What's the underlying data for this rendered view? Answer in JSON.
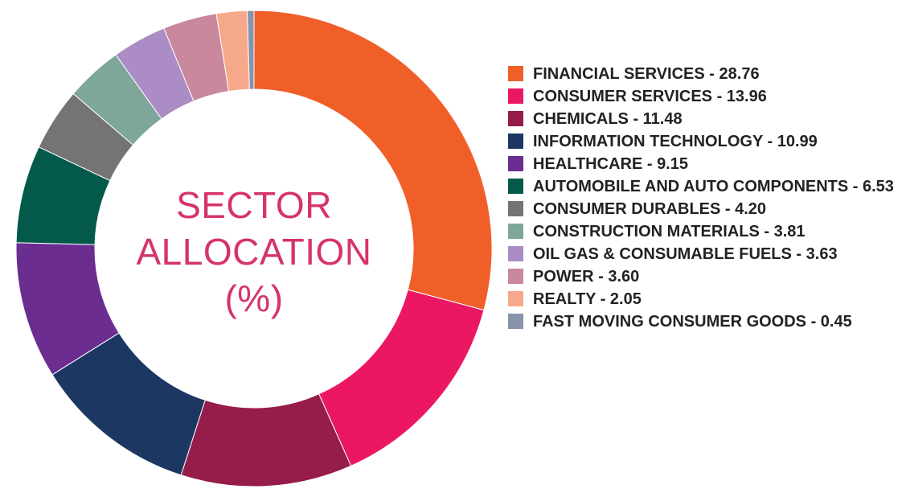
{
  "center_label": {
    "line1": "SECTOR",
    "line2": "ALLOCATION",
    "line3": "(%)"
  },
  "chart_data": {
    "type": "pie",
    "title": "SECTOR ALLOCATION (%)",
    "donut": true,
    "legend_position": "right",
    "slices": [
      {
        "label": "FINANCIAL SERVICES",
        "value": 28.76,
        "color": "#f15f29",
        "legend": "FINANCIAL SERVICES - 28.76"
      },
      {
        "label": "CONSUMER SERVICES",
        "value": 13.96,
        "color": "#ec1763",
        "legend": "CONSUMER SERVICES - 13.96"
      },
      {
        "label": "CHEMICALS",
        "value": 11.48,
        "color": "#961c4b",
        "legend": "CHEMICALS - 11.48"
      },
      {
        "label": "INFORMATION TECHNOLOGY",
        "value": 10.99,
        "color": "#1c3762",
        "legend": "INFORMATION TECHNOLOGY - 10.99"
      },
      {
        "label": "HEALTHCARE",
        "value": 9.15,
        "color": "#6c2d91",
        "legend": "HEALTHCARE - 9.15"
      },
      {
        "label": "AUTOMOBILE AND AUTO COMPONENTS",
        "value": 6.53,
        "color": "#035a4b",
        "legend": "AUTOMOBILE AND AUTO COMPONENTS - 6.53"
      },
      {
        "label": "CONSUMER DURABLES",
        "value": 4.2,
        "color": "#747474",
        "legend": "CONSUMER DURABLES - 4.20"
      },
      {
        "label": "CONSTRUCTION MATERIALS",
        "value": 3.81,
        "color": "#7ea69a",
        "legend": "CONSTRUCTION MATERIALS - 3.81"
      },
      {
        "label": "OIL GAS & CONSUMABLE FUELS",
        "value": 3.63,
        "color": "#ab8cc4",
        "legend": "OIL GAS & CONSUMABLE FUELS - 3.63"
      },
      {
        "label": "POWER",
        "value": 3.6,
        "color": "#c9889b",
        "legend": "POWER - 3.60"
      },
      {
        "label": "REALTY",
        "value": 2.05,
        "color": "#f6a98a",
        "legend": "REALTY - 2.05"
      },
      {
        "label": "FAST MOVING CONSUMER GOODS",
        "value": 0.45,
        "color": "#8894ab",
        "legend": "FAST MOVING CONSUMER GOODS - 0.45"
      }
    ]
  }
}
